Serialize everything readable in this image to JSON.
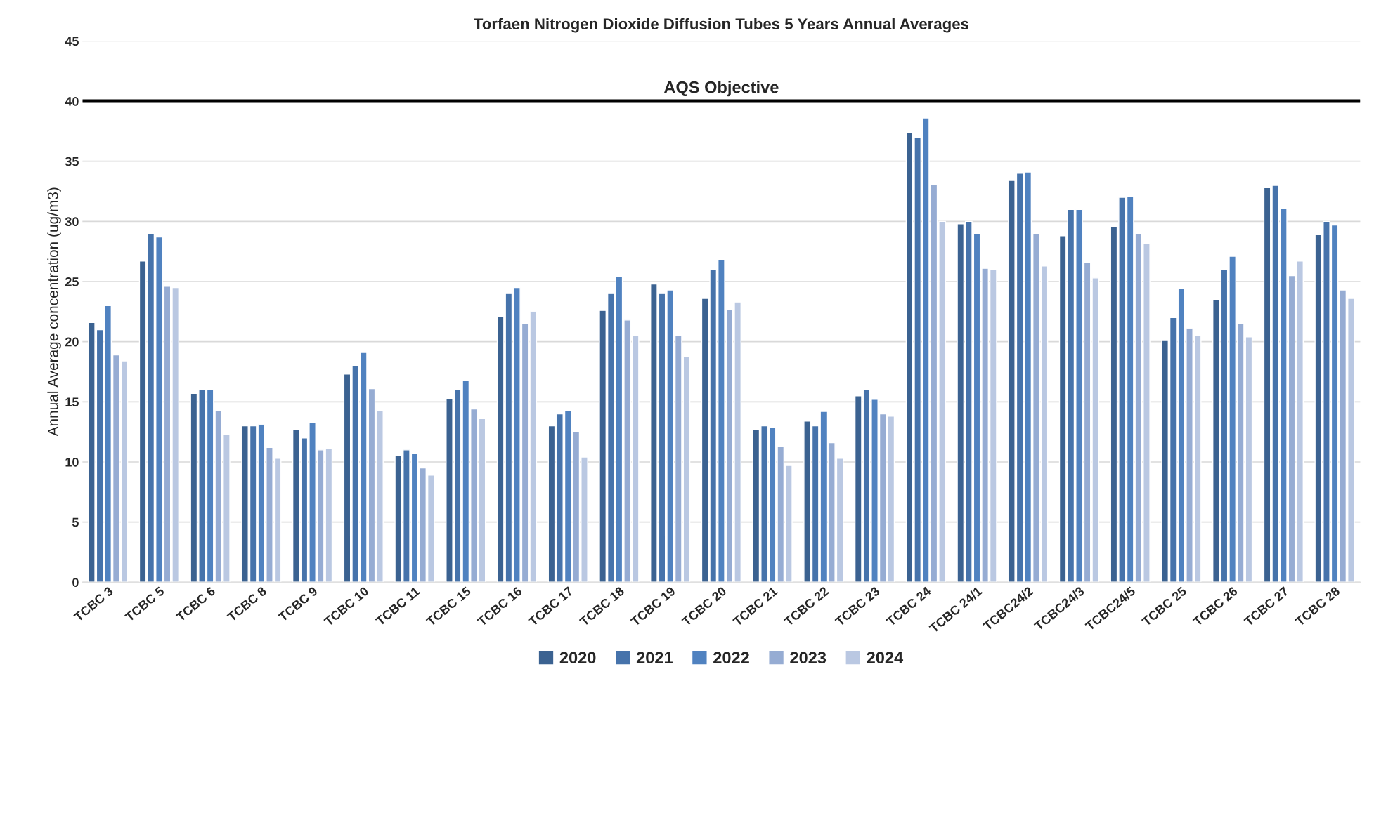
{
  "chart_data": {
    "type": "bar",
    "title": "Torfaen Nitrogen Dioxide Diffusion Tubes 5 Years Annual Averages",
    "ylabel": "Annual Average concentration (ug/m3)",
    "categories": [
      "TCBC 3",
      "TCBC 5",
      "TCBC 6",
      "TCBC 8",
      "TCBC 9",
      "TCBC 10",
      "TCBC 11",
      "TCBC 15",
      "TCBC 16",
      "TCBC 17",
      "TCBC 18",
      "TCBC 19",
      "TCBC 20",
      "TCBC 21",
      "TCBC 22",
      "TCBC 23",
      "TCBC 24",
      "TCBC 24/1",
      "TCBC24/2",
      "TCBC24/3",
      "TCBC24/5",
      "TCBC 25",
      "TCBC 26",
      "TCBC 27",
      "TCBC 28"
    ],
    "series": [
      {
        "name": "2020",
        "color": "#3b6291",
        "values": [
          21.6,
          26.7,
          15.7,
          13,
          12.7,
          17.3,
          10.5,
          15.3,
          22.1,
          13,
          22.6,
          24.8,
          23.6,
          12.7,
          13.4,
          15.5,
          37.4,
          29.8,
          33.4,
          28.8,
          29.6,
          20.1,
          23.5,
          32.8,
          28.9
        ]
      },
      {
        "name": "2021",
        "color": "#4673ab",
        "values": [
          21,
          29,
          16,
          13,
          12,
          18,
          11,
          16,
          24,
          14,
          24,
          24,
          26,
          13,
          13,
          16,
          37,
          30,
          34,
          31,
          32,
          22,
          26,
          33,
          30
        ]
      },
      {
        "name": "2022",
        "color": "#5082c0",
        "values": [
          23,
          28.7,
          16,
          13.1,
          13.3,
          19.1,
          10.7,
          16.8,
          24.5,
          14.3,
          25.4,
          24.3,
          26.8,
          12.9,
          14.2,
          15.2,
          38.6,
          29,
          34.1,
          31,
          32.1,
          24.4,
          27.1,
          31.1,
          29.7
        ]
      },
      {
        "name": "2023",
        "color": "#96acd3",
        "values": [
          18.9,
          24.6,
          14.3,
          11.2,
          11,
          16.1,
          9.5,
          14.4,
          21.5,
          12.5,
          21.8,
          20.5,
          22.7,
          11.3,
          11.6,
          14,
          33.1,
          26.1,
          29,
          26.6,
          29,
          21.1,
          21.5,
          25.5,
          24.3
        ]
      },
      {
        "name": "2024",
        "color": "#bac8e2",
        "values": [
          18.4,
          24.5,
          12.3,
          10.3,
          11.1,
          14.3,
          8.9,
          13.6,
          22.5,
          10.4,
          20.5,
          18.8,
          23.3,
          9.7,
          10.3,
          13.8,
          30,
          26,
          26.3,
          25.3,
          28.2,
          20.5,
          20.4,
          26.7,
          23.6
        ]
      }
    ],
    "ylim": [
      0,
      45
    ],
    "yticks": [
      0,
      5,
      10,
      15,
      20,
      25,
      30,
      35,
      40,
      45
    ],
    "grid": "y",
    "legend": "bottom",
    "ref_lines": [
      {
        "axis": "y",
        "value": 40,
        "label": "AQS Objective",
        "color": "#000000",
        "line_style": "solid"
      }
    ]
  }
}
